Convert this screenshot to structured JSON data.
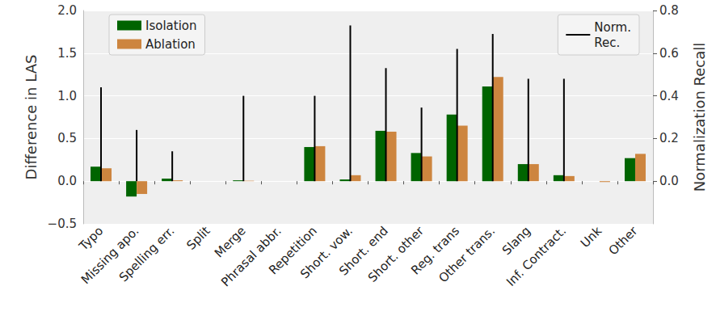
{
  "chart_data": {
    "type": "bar",
    "ylabel": "Difference in LAS",
    "y2label": "Normalization Recall",
    "categories": [
      "Typo",
      "Missing apo.",
      "Spelling err.",
      "Split",
      "Merge",
      "Phrasal abbr.",
      "Repetition",
      "Short. vow.",
      "Short. end",
      "Short. other",
      "Reg. trans",
      "Other trans.",
      "Slang",
      "Inf. Contract.",
      "Unk",
      "Other"
    ],
    "series": [
      {
        "name": "Isolation",
        "color": "#006400",
        "values": [
          0.17,
          -0.18,
          0.03,
          0,
          0.01,
          0,
          0.4,
          0.02,
          0.59,
          0.33,
          0.78,
          1.11,
          0.2,
          0.07,
          0,
          0.27
        ]
      },
      {
        "name": "Ablation",
        "color": "#cd853f",
        "values": [
          0.15,
          -0.15,
          0.01,
          0,
          0.005,
          0,
          0.41,
          0.07,
          0.58,
          0.29,
          0.65,
          1.22,
          0.2,
          0.06,
          -0.01,
          0.32
        ]
      },
      {
        "name": "Norm.\nRec.",
        "color": "#000000",
        "axis": "y2",
        "values": [
          0.44,
          0.24,
          0.14,
          0,
          0.4,
          0,
          0.4,
          0.73,
          0.53,
          0.345,
          0.62,
          0.69,
          0.48,
          0.48,
          0,
          0
        ]
      }
    ],
    "ylim": [
      -0.5,
      2.0
    ],
    "yticks": [
      {
        "value": -0.5,
        "label": "−0.5"
      },
      {
        "value": 0,
        "label": "0.0"
      },
      {
        "value": 0.5,
        "label": "0.5"
      },
      {
        "value": 1.0,
        "label": "1.0"
      },
      {
        "value": 1.5,
        "label": "1.5"
      },
      {
        "value": 2.0,
        "label": "2.0"
      }
    ],
    "y2lim": [
      -0.2,
      0.8
    ],
    "y2ticks": [
      {
        "value": 0,
        "label": "0.0"
      },
      {
        "value": 0.2,
        "label": "0.2"
      },
      {
        "value": 0.4,
        "label": "0.4"
      },
      {
        "value": 0.6,
        "label": "0.6"
      },
      {
        "value": 0.8,
        "label": "0.8"
      }
    ],
    "legend": "upper left",
    "grid": true
  }
}
